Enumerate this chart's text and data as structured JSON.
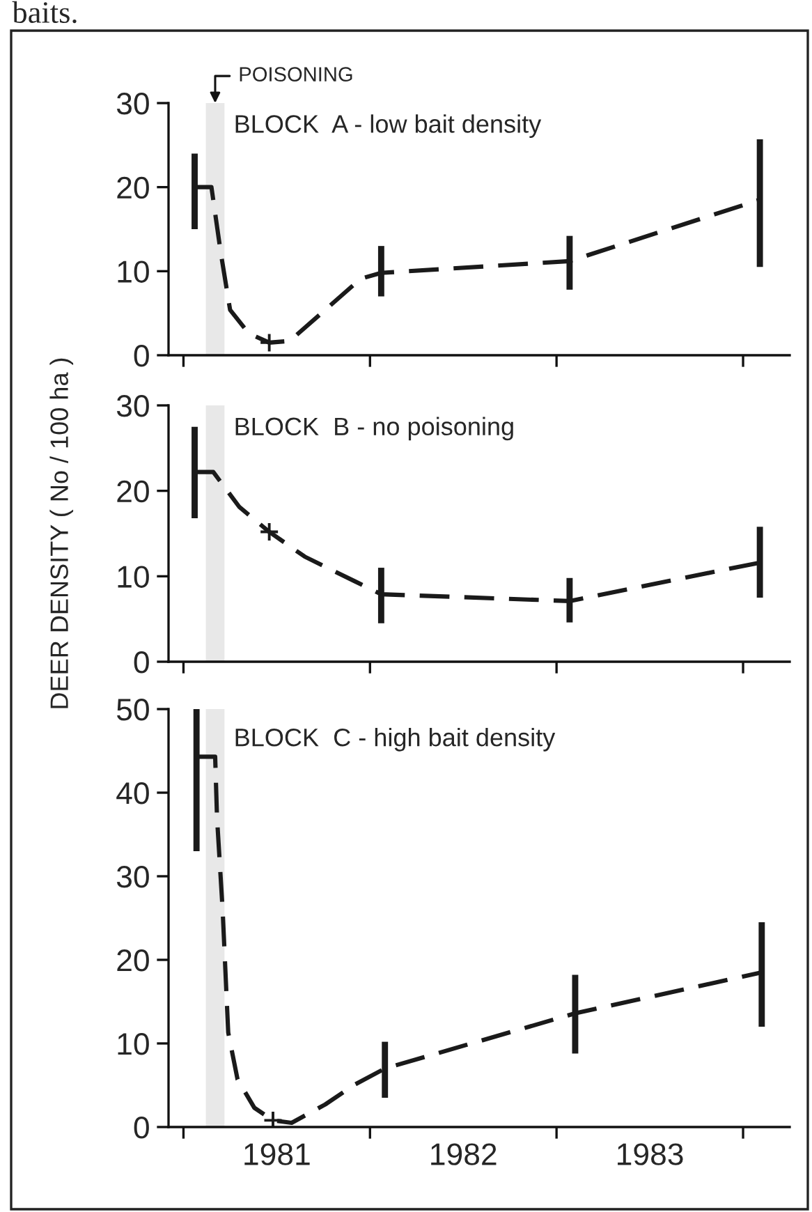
{
  "chart_data": [
    {
      "type": "line",
      "title": "BLOCK  A - low bait density",
      "annotations": [
        "baits."
      ],
      "xlim": [
        1980.92,
        1984.25
      ],
      "xticks": [
        {
          "value": 1981,
          "label": null
        },
        {
          "value": 1982,
          "label": null
        },
        {
          "value": 1983,
          "label": null
        },
        {
          "value": 1984,
          "label": null
        }
      ],
      "ylim": [
        0,
        30
      ],
      "yticks": [
        0,
        10,
        20,
        30
      ],
      "tick_labels": "y",
      "grid": false,
      "line_style": "dashed",
      "bands": [
        {
          "axis": "x",
          "from": 1981.12,
          "to": 1981.22,
          "label": "POISONING",
          "color": "#e8e8e8"
        }
      ],
      "series": [
        {
          "color": "#1a1a1a",
          "x": [
            1981.06,
            1981.15,
            1981.2,
            1981.25,
            1981.35,
            1981.46,
            1981.57,
            1981.76,
            1981.95,
            1982.06,
            1983.07,
            1984.09
          ],
          "values": [
            20,
            20,
            12.2,
            5.4,
            2.6,
            1.5,
            1.7,
            5.4,
            9.1,
            9.8,
            11.2,
            18.5
          ],
          "errors": [
            [
              15,
              24
            ],
            null,
            null,
            null,
            null,
            null,
            null,
            null,
            null,
            [
              7,
              13
            ],
            [
              7.8,
              14.2
            ],
            [
              10.5,
              25.7
            ]
          ]
        },
        {
          "type": "scatter",
          "marker": "cross",
          "color": "#1a1a1a",
          "x": [
            1981.46
          ],
          "values": [
            1.5
          ]
        }
      ]
    },
    {
      "type": "line",
      "title": "BLOCK  B - no poisoning",
      "ylabel": "DEER DENSITY ( No / 100 ha )",
      "xlim": [
        1980.92,
        1984.25
      ],
      "xticks": [
        {
          "value": 1981,
          "label": null
        },
        {
          "value": 1982,
          "label": null
        },
        {
          "value": 1983,
          "label": null
        },
        {
          "value": 1984,
          "label": null
        }
      ],
      "ylim": [
        0,
        30
      ],
      "yticks": [
        0,
        10,
        20,
        30
      ],
      "tick_labels": "y",
      "grid": false,
      "line_style": "dashed",
      "bands": [
        {
          "axis": "x",
          "from": 1981.12,
          "to": 1981.22,
          "color": "#e8e8e8"
        }
      ],
      "series": [
        {
          "color": "#1a1a1a",
          "x": [
            1981.06,
            1981.16,
            1981.3,
            1981.46,
            1981.65,
            1982.06,
            1983.07,
            1984.09
          ],
          "values": [
            22.2,
            22.2,
            18.1,
            15.2,
            12.3,
            7.9,
            7.1,
            11.6
          ],
          "errors": [
            [
              16.8,
              27.5
            ],
            null,
            null,
            null,
            null,
            [
              4.5,
              11
            ],
            [
              4.6,
              9.8
            ],
            [
              7.5,
              15.8
            ]
          ]
        },
        {
          "type": "scatter",
          "marker": "cross",
          "color": "#1a1a1a",
          "x": [
            1981.46
          ],
          "values": [
            15.2
          ]
        }
      ]
    },
    {
      "type": "line",
      "title": "BLOCK  C - high bait density",
      "xlim": [
        1980.92,
        1984.25
      ],
      "xticks": [
        {
          "value": 1981,
          "label": null
        },
        {
          "value": 1982,
          "label": null
        },
        {
          "value": 1983,
          "label": null
        },
        {
          "value": 1984,
          "label": null
        },
        {
          "value": 1981.5,
          "label": "1981"
        },
        {
          "value": 1982.5,
          "label": "1982"
        },
        {
          "value": 1983.5,
          "label": "1983"
        }
      ],
      "ylim": [
        0,
        50
      ],
      "yticks": [
        0,
        10,
        20,
        30,
        40,
        50
      ],
      "grid": false,
      "line_style": "dashed",
      "bands": [
        {
          "axis": "x",
          "from": 1981.12,
          "to": 1981.22,
          "color": "#e8e8e8"
        }
      ],
      "series": [
        {
          "color": "#1a1a1a",
          "x": [
            1981.07,
            1981.17,
            1981.18,
            1981.21,
            1981.24,
            1981.29,
            1981.38,
            1981.48,
            1981.58,
            1981.76,
            1981.92,
            1982.08,
            1983.1,
            1984.1
          ],
          "values": [
            44.3,
            44.3,
            37,
            26,
            11.3,
            5.7,
            2.3,
            0.8,
            0.5,
            2.7,
            5.1,
            7,
            13.6,
            18.5
          ],
          "errors": [
            [
              33,
              50
            ],
            null,
            null,
            null,
            null,
            null,
            null,
            null,
            null,
            null,
            null,
            [
              3.5,
              10.2
            ],
            [
              8.8,
              18.2
            ],
            [
              12,
              24.5
            ]
          ]
        },
        {
          "type": "scatter",
          "marker": "cross",
          "color": "#1a1a1a",
          "x": [
            1981.48
          ],
          "values": [
            0.8
          ]
        }
      ]
    }
  ]
}
